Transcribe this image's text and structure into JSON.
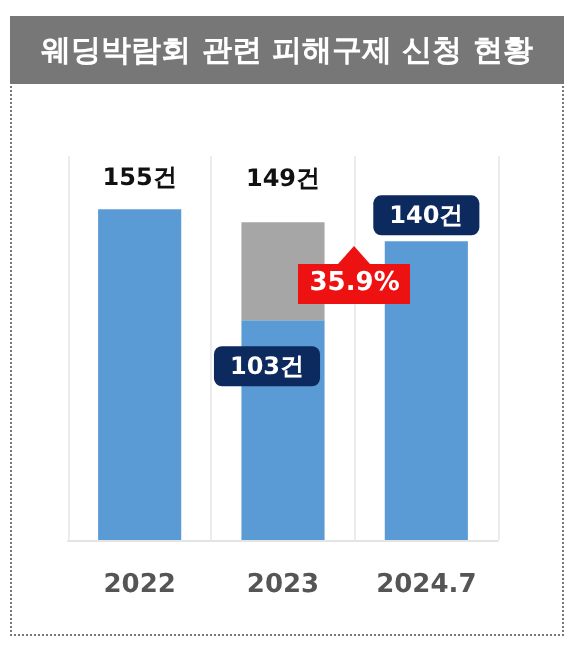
{
  "chart_data": {
    "type": "bar",
    "title": "웨딩박람회 관련 피해구제 신청 현황",
    "categories": [
      "2022",
      "2023",
      "2024.7"
    ],
    "stacked": true,
    "series": [
      {
        "color": "#5b9bd5",
        "values": [
          155,
          103,
          140
        ],
        "value_labels": [
          "155건",
          "103건",
          "140건"
        ]
      },
      {
        "color": "#a6a6a6",
        "values": [
          null,
          46,
          null
        ]
      }
    ],
    "totals": [
      null,
      "149건",
      null
    ],
    "annotations": [
      "35.9%"
    ],
    "grid": "x"
  }
}
